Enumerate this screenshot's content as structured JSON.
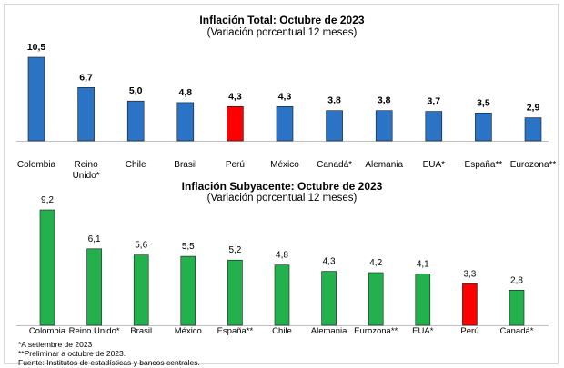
{
  "chart_data": [
    {
      "type": "bar",
      "title": "Inflación Total: Octubre de 2023",
      "subtitle": "(Variación porcentual 12 meses)",
      "categories": [
        "Colombia",
        "Reino Unido*",
        "Chile",
        "Brasil",
        "Perú",
        "México",
        "Canadá*",
        "Alemania",
        "EUA*",
        "España**",
        "Eurozona**"
      ],
      "category_lines": [
        [
          "Colombia"
        ],
        [
          "Reino",
          "Unido*"
        ],
        [
          "Chile"
        ],
        [
          "Brasil"
        ],
        [
          "Perú"
        ],
        [
          "México"
        ],
        [
          "Canadá*"
        ],
        [
          "Alemania"
        ],
        [
          "EUA*"
        ],
        [
          "España**"
        ],
        [
          "Eurozona**"
        ]
      ],
      "values": [
        10.5,
        6.7,
        5.0,
        4.8,
        4.3,
        4.3,
        3.8,
        3.8,
        3.7,
        3.5,
        2.9
      ],
      "value_labels": [
        "10,5",
        "6,7",
        "5,0",
        "4,8",
        "4,3",
        "4,3",
        "3,8",
        "3,8",
        "3,7",
        "3,5",
        "2,9"
      ],
      "highlight": "Perú",
      "colors": {
        "bar": "#2a73c5",
        "highlight": "#ff0000"
      },
      "ylim": [
        0,
        10.5
      ]
    },
    {
      "type": "bar",
      "title": "Inflación Subyacente: Octubre de 2023",
      "subtitle": "(Variación porcentual 12 meses)",
      "categories": [
        "Colombia",
        "Reino Unido*",
        "Brasil",
        "México",
        "España**",
        "Chile",
        "Alemania",
        "Eurozona**",
        "EUA*",
        "Perú",
        "Canadá*"
      ],
      "category_lines": [
        [
          "Colombia"
        ],
        [
          "Reino Unido*"
        ],
        [
          "Brasil"
        ],
        [
          "México"
        ],
        [
          "España**"
        ],
        [
          "Chile"
        ],
        [
          "Alemania"
        ],
        [
          "Eurozona**"
        ],
        [
          "EUA*"
        ],
        [
          "Perú"
        ],
        [
          "Canadá*"
        ]
      ],
      "values": [
        9.2,
        6.1,
        5.6,
        5.5,
        5.2,
        4.8,
        4.3,
        4.2,
        4.1,
        3.3,
        2.8
      ],
      "value_labels": [
        "9,2",
        "6,1",
        "5,6",
        "5,5",
        "5,2",
        "4,8",
        "4,3",
        "4,2",
        "4,1",
        "3,3",
        "2,8"
      ],
      "highlight": "Perú",
      "colors": {
        "bar": "#22b14c",
        "highlight": "#ff0000"
      },
      "ylim": [
        0,
        9.2
      ]
    }
  ],
  "notes": [
    "*A setiembre de 2023",
    "**Preliminar a octubre de 2023.",
    "Fuente: Institutos de estadísticas y bancos centrales."
  ]
}
